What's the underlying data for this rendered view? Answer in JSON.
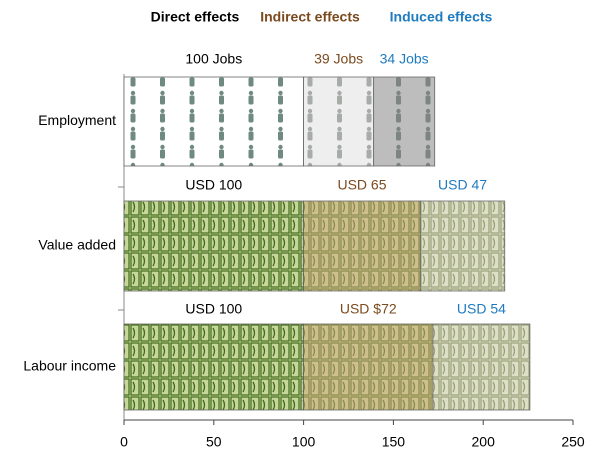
{
  "chart_data": {
    "type": "bar",
    "orientation": "horizontal",
    "stacked": true,
    "categories": [
      "Employment",
      "Value added",
      "Labour income"
    ],
    "series": [
      {
        "name": "Direct effects",
        "color": "#000000",
        "values": [
          100,
          100,
          100
        ],
        "value_labels": [
          "100 Jobs",
          "USD 100",
          "USD 100"
        ]
      },
      {
        "name": "Indirect effects",
        "color": "#7b4a1e",
        "values": [
          39,
          65,
          72
        ],
        "value_labels": [
          "39 Jobs",
          "USD 65",
          "USD $72"
        ]
      },
      {
        "name": "Induced effects",
        "color": "#1f7bbf",
        "values": [
          34,
          47,
          54
        ],
        "value_labels": [
          "34 Jobs",
          "USD 47",
          "USD 54"
        ]
      }
    ],
    "xlim": [
      0,
      250
    ],
    "xticks": [
      0,
      50,
      100,
      150,
      200,
      250
    ]
  }
}
